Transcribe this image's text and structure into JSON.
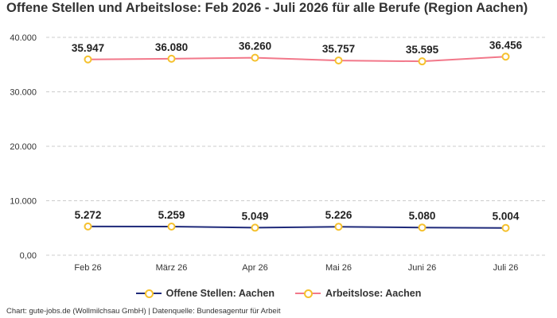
{
  "chart_data": {
    "type": "line",
    "title": "Offene Stellen und Arbeitslose: Feb 2026 - Juli 2026 für alle Berufe (Region Aachen)",
    "categories": [
      "Feb 26",
      "März 26",
      "Apr 26",
      "Mai 26",
      "Juni 26",
      "Juli 26"
    ],
    "series": [
      {
        "name": "Offene Stellen: Aachen",
        "values": [
          5272,
          5259,
          5049,
          5226,
          5080,
          5004
        ],
        "labels": [
          "5.272",
          "5.259",
          "5.049",
          "5.226",
          "5.080",
          "5.004"
        ],
        "color": "#1f2a7a"
      },
      {
        "name": "Arbeitslose: Aachen",
        "values": [
          35947,
          36080,
          36260,
          35757,
          35595,
          36456
        ],
        "labels": [
          "35.947",
          "36.080",
          "36.260",
          "35.757",
          "35.595",
          "36.456"
        ],
        "color": "#f2788a"
      }
    ],
    "marker_color": "#f5c12e",
    "yticks": [
      0,
      10000,
      20000,
      30000,
      40000
    ],
    "ytick_labels": [
      "0,00",
      "10.000",
      "20.000",
      "30.000",
      "40.000"
    ],
    "ylim": [
      0,
      40000
    ],
    "grid": true,
    "legend_position": "bottom"
  },
  "footer": "Chart: gute-jobs.de (Wollmilchsau GmbH) | Datenquelle: Bundesagentur für Arbeit"
}
